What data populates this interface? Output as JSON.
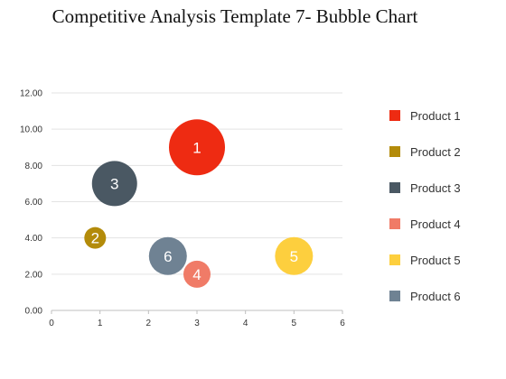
{
  "page": {
    "title": "Competitive Analysis Template 7- Bubble Chart"
  },
  "chart_data": {
    "type": "bubble",
    "title": "Competitive Analysis Template 7- Bubble Chart",
    "xlabel": "",
    "ylabel": "",
    "xlim": [
      0,
      6
    ],
    "ylim": [
      0,
      12
    ],
    "x_ticks": [
      "0",
      "1",
      "2",
      "3",
      "4",
      "5",
      "6"
    ],
    "y_ticks": [
      "0.00",
      "2.00",
      "4.00",
      "6.00",
      "8.00",
      "10.00",
      "12.00"
    ],
    "grid": "horizontal",
    "legend_position": "right",
    "series": [
      {
        "name": "Product 1",
        "label": "1",
        "x": 3.0,
        "y": 9.0,
        "size": 31,
        "color": "#EE2B12"
      },
      {
        "name": "Product 2",
        "label": "2",
        "x": 0.9,
        "y": 4.0,
        "size": 12,
        "color": "#B38B0A"
      },
      {
        "name": "Product 3",
        "label": "3",
        "x": 1.3,
        "y": 7.0,
        "size": 25,
        "color": "#4A5863"
      },
      {
        "name": "Product 4",
        "label": "4",
        "x": 3.0,
        "y": 2.0,
        "size": 15,
        "color": "#F07B67"
      },
      {
        "name": "Product 5",
        "label": "5",
        "x": 5.0,
        "y": 3.0,
        "size": 21,
        "color": "#FDCF3E"
      },
      {
        "name": "Product 6",
        "label": "6",
        "x": 2.4,
        "y": 3.0,
        "size": 21,
        "color": "#6F8293"
      }
    ]
  }
}
